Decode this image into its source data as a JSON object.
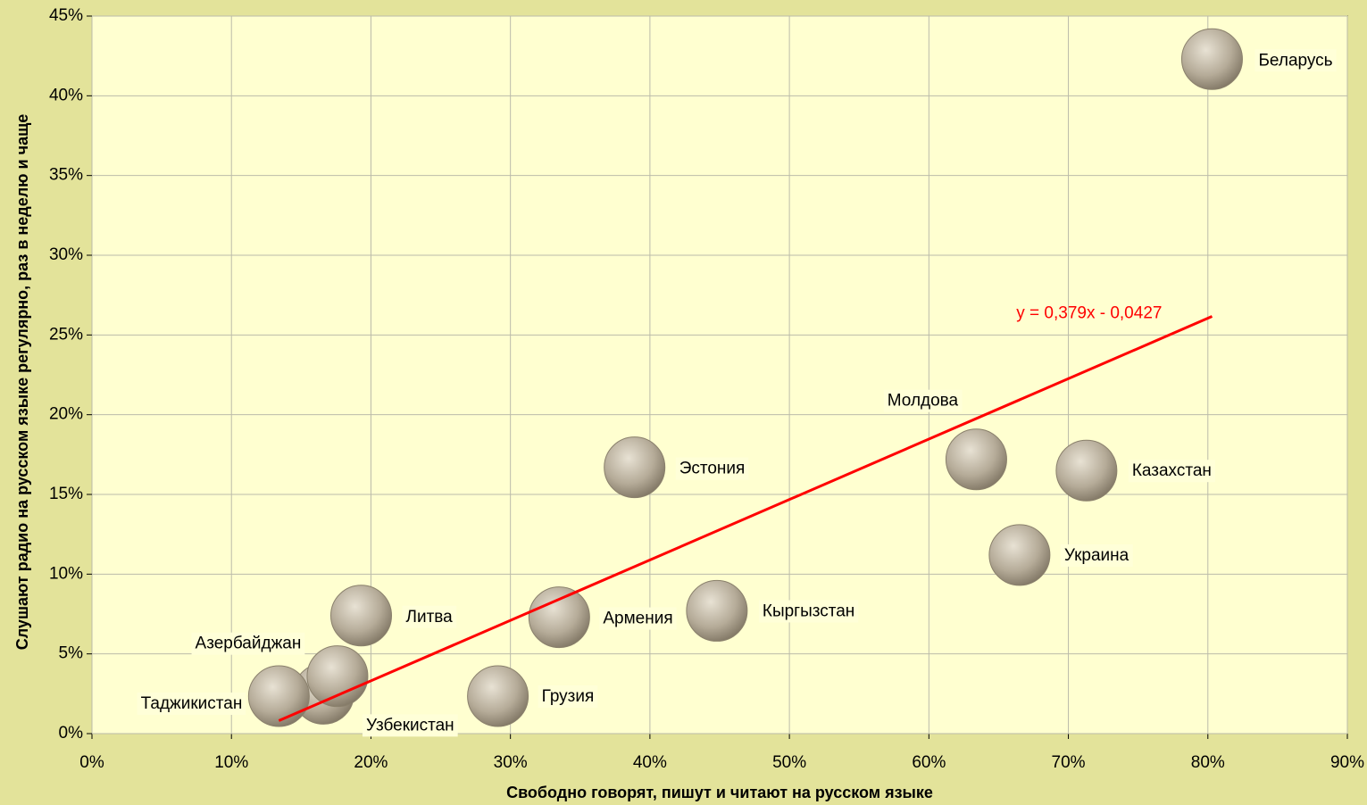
{
  "chart_data": {
    "type": "scatter",
    "xlabel": "Свободно говорят, пишут и читают на русском языке",
    "ylabel": "Слушают радио на русском языке регулярно, раз в неделю и чаще",
    "labels": [
      "Беларусь",
      "Эстония",
      "Молдова",
      "Казахстан",
      "Украина",
      "Кыргызстан",
      "Армения",
      "Литва",
      "Грузия",
      "Узбекистан",
      "Азербайджан",
      "Таджикистан"
    ],
    "x": [
      80.3,
      38.9,
      63.4,
      71.3,
      66.5,
      44.8,
      33.5,
      19.3,
      29.1,
      16.6,
      17.6,
      13.4
    ],
    "values": [
      42.3,
      16.7,
      17.2,
      16.5,
      11.2,
      7.7,
      7.3,
      7.4,
      2.35,
      2.5,
      3.6,
      2.35
    ],
    "color": "#b5ab98",
    "trendline": {
      "label": "y = 0,379x - 0,0427",
      "slope": 0.379,
      "intercept": -4.27,
      "color": "#ff0000"
    },
    "xlim": [
      0,
      90
    ],
    "ylim": [
      0,
      45
    ],
    "xticks": [
      {
        "value": 0,
        "label": "0%"
      },
      {
        "value": 10,
        "label": "10%"
      },
      {
        "value": 20,
        "label": "20%"
      },
      {
        "value": 30,
        "label": "30%"
      },
      {
        "value": 40,
        "label": "40%"
      },
      {
        "value": 50,
        "label": "50%"
      },
      {
        "value": 60,
        "label": "60%"
      },
      {
        "value": 70,
        "label": "70%"
      },
      {
        "value": 80,
        "label": "80%"
      },
      {
        "value": 90,
        "label": "90%"
      }
    ],
    "yticks": [
      {
        "value": 0,
        "label": "0%"
      },
      {
        "value": 5,
        "label": "5%"
      },
      {
        "value": 10,
        "label": "10%"
      },
      {
        "value": 15,
        "label": "15%"
      },
      {
        "value": 20,
        "label": "20%"
      },
      {
        "value": 25,
        "label": "25%"
      },
      {
        "value": 30,
        "label": "30%"
      },
      {
        "value": 35,
        "label": "35%"
      },
      {
        "value": 40,
        "label": "40%"
      },
      {
        "value": 45,
        "label": "45%"
      }
    ],
    "grid": true
  }
}
